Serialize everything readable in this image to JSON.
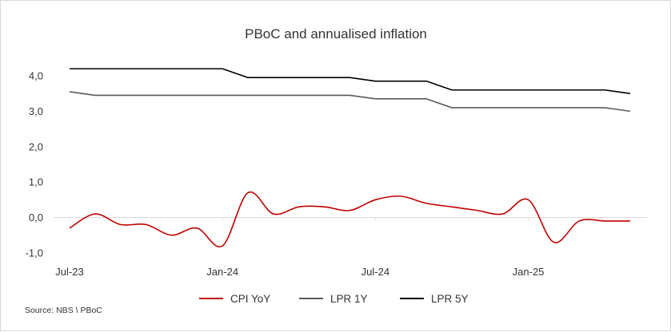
{
  "chart_data": {
    "type": "line",
    "title": "PBoC and annualised inflation",
    "xlabel": "",
    "ylabel": "",
    "x": [
      "Jul-23",
      "Aug-23",
      "Sep-23",
      "Oct-23",
      "Nov-23",
      "Dec-23",
      "Jan-24",
      "Feb-24",
      "Mar-24",
      "Apr-24",
      "May-24",
      "Jun-24",
      "Jul-24",
      "Aug-24",
      "Sep-24",
      "Oct-24",
      "Nov-24",
      "Dec-24",
      "Jan-25",
      "Feb-25",
      "Mar-25",
      "Apr-25",
      "May-25"
    ],
    "x_tick_labels": [
      {
        "index": 0,
        "label": "Jul-23"
      },
      {
        "index": 6,
        "label": "Jan-24"
      },
      {
        "index": 12,
        "label": "Jul-24"
      },
      {
        "index": 18,
        "label": "Jan-25"
      }
    ],
    "y_tick_labels": [
      "4,0",
      "3,0",
      "2,0",
      "1,0",
      "0,0",
      "-1,0"
    ],
    "y_ticks": [
      4,
      3,
      2,
      1,
      0,
      -1
    ],
    "ylim": [
      -1,
      4
    ],
    "grid": false,
    "series": [
      {
        "name": "CPI YoY",
        "color": "#c00000",
        "smooth": true,
        "values": [
          -0.3,
          0.1,
          -0.2,
          -0.2,
          -0.5,
          -0.3,
          -0.8,
          0.7,
          0.1,
          0.3,
          0.3,
          0.2,
          0.5,
          0.6,
          0.4,
          0.3,
          0.2,
          0.1,
          0.5,
          -0.7,
          -0.1,
          -0.1,
          -0.1
        ]
      },
      {
        "name": "LPR 1Y",
        "color": "#595959",
        "smooth": false,
        "values": [
          3.55,
          3.45,
          3.45,
          3.45,
          3.45,
          3.45,
          3.45,
          3.45,
          3.45,
          3.45,
          3.45,
          3.45,
          3.35,
          3.35,
          3.35,
          3.1,
          3.1,
          3.1,
          3.1,
          3.1,
          3.1,
          3.1,
          3.0
        ]
      },
      {
        "name": "LPR 5Y",
        "color": "#000000",
        "smooth": false,
        "values": [
          4.2,
          4.2,
          4.2,
          4.2,
          4.2,
          4.2,
          4.2,
          3.95,
          3.95,
          3.95,
          3.95,
          3.95,
          3.85,
          3.85,
          3.85,
          3.6,
          3.6,
          3.6,
          3.6,
          3.6,
          3.6,
          3.6,
          3.5
        ]
      }
    ],
    "legend": {
      "placement": "bottom-center",
      "entries": [
        "CPI YoY",
        "LPR 1Y",
        "LPR 5Y"
      ]
    },
    "source": "Source: NBS \\ PBoC"
  }
}
